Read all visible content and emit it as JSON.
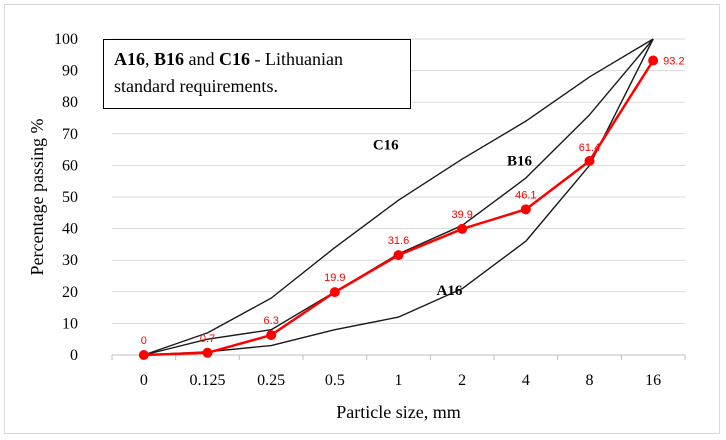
{
  "chart_data": {
    "type": "line",
    "categories": [
      "0",
      "0.125",
      "0.25",
      "0.5",
      "1",
      "2",
      "4",
      "8",
      "16"
    ],
    "xlabel": "Particle size, mm",
    "ylabel": "Percentage passing %",
    "ylim": [
      0,
      100
    ],
    "yticks": [
      "0",
      "10",
      "20",
      "30",
      "40",
      "50",
      "60",
      "70",
      "80",
      "90",
      "100"
    ],
    "grid": true,
    "series": [
      {
        "name": "C16",
        "color": "#1a1a1a",
        "values": [
          0,
          7,
          18,
          34,
          49,
          62,
          74,
          88,
          100
        ]
      },
      {
        "name": "B16",
        "color": "#1a1a1a",
        "values": [
          0,
          5,
          8,
          20,
          32,
          41,
          56,
          76,
          100
        ]
      },
      {
        "name": "A16",
        "color": "#1a1a1a",
        "values": [
          0,
          1,
          3,
          8,
          12,
          21,
          36,
          60,
          100
        ]
      },
      {
        "name": "",
        "color": "#ff0000",
        "values": [
          0,
          0.7,
          6.3,
          19.9,
          31.6,
          39.9,
          46.1,
          61.4,
          93.2
        ],
        "labels": [
          "0",
          "0.7",
          "6.3",
          "19.9",
          "31.6",
          "39.9",
          "46.1",
          "61.4",
          "93.2"
        ]
      }
    ],
    "curve_labels": [
      {
        "text": "C16",
        "x_index": 3.8,
        "y": 65
      },
      {
        "text": "B16",
        "x_index": 5.9,
        "y": 60
      },
      {
        "text": "A16",
        "x_index": 4.8,
        "y": 19
      }
    ],
    "annotation": {
      "parts": [
        {
          "text": "A16",
          "bold": true
        },
        {
          "text": ", ",
          "bold": false
        },
        {
          "text": "B16",
          "bold": true
        },
        {
          "text": " and ",
          "bold": false
        },
        {
          "text": "C16",
          "bold": true
        },
        {
          "text": " - Lithuanian standard requirements.",
          "bold": false
        }
      ]
    }
  }
}
